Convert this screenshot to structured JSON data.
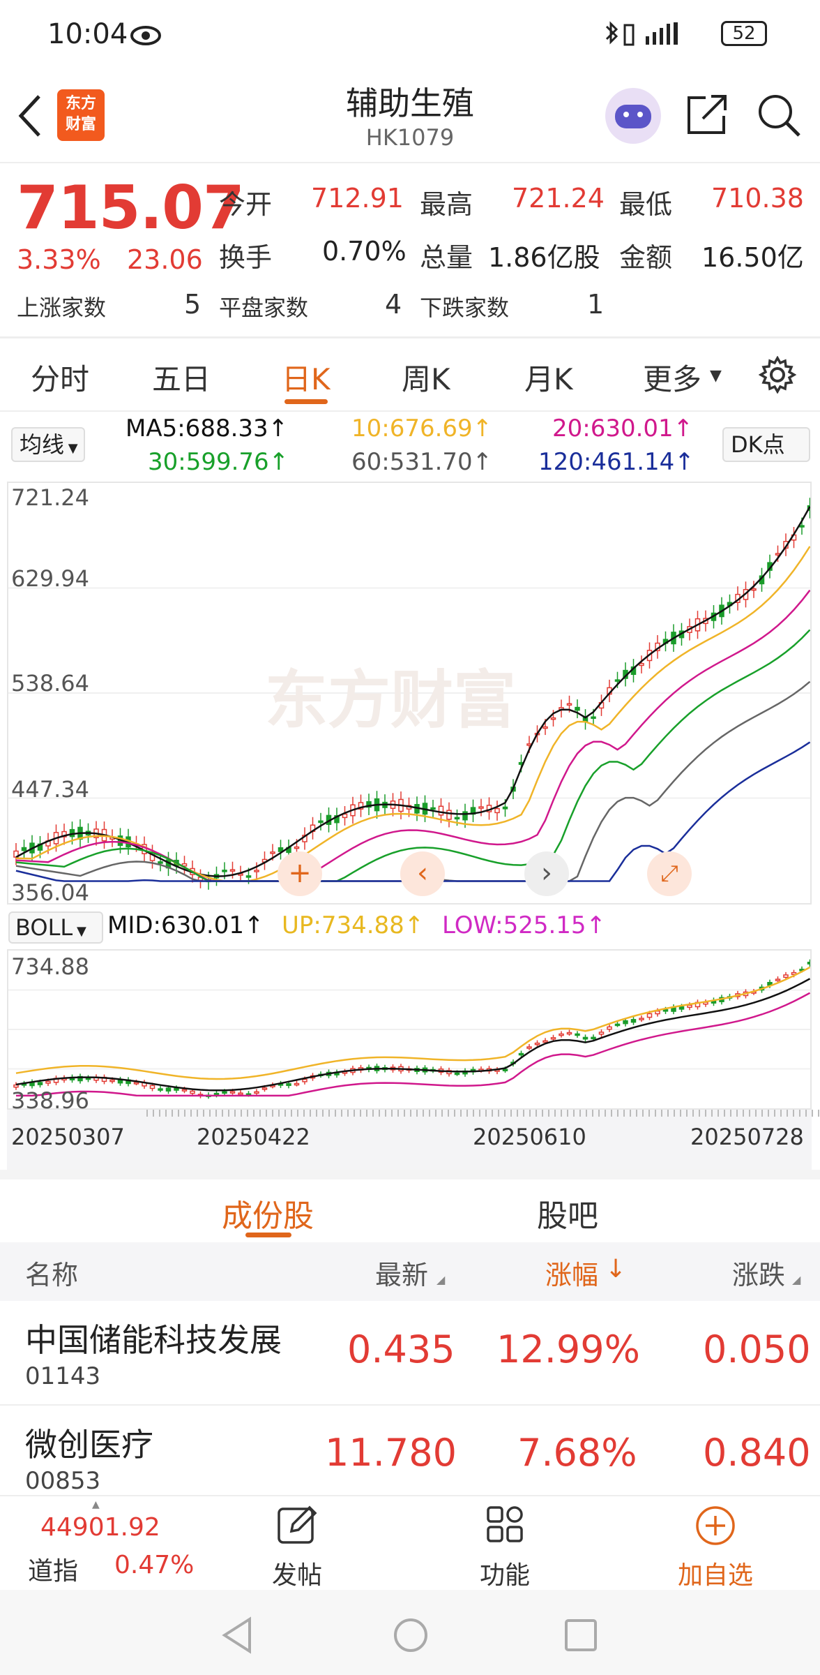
{
  "status": {
    "time": "10:04",
    "battery": "52"
  },
  "header": {
    "title": "辅助生殖",
    "code": "HK1079",
    "logo_line1": "东方",
    "logo_line2": "财富"
  },
  "quote": {
    "price": "715.07",
    "change_pct": "3.33%",
    "change": "23.06",
    "open_label": "今开",
    "open": "712.91",
    "high_label": "最高",
    "high": "721.24",
    "low_label": "最低",
    "low": "710.38",
    "turnover_label": "换手",
    "turnover": "0.70%",
    "volume_label": "总量",
    "volume": "1.86亿股",
    "amount_label": "金额",
    "amount": "16.50亿",
    "up_label": "上涨家数",
    "up_count": "5",
    "flat_label": "平盘家数",
    "flat_count": "4",
    "down_label": "下跌家数",
    "down_count": "1"
  },
  "period_tabs": [
    {
      "label": "分时"
    },
    {
      "label": "五日"
    },
    {
      "label": "日K"
    },
    {
      "label": "周K"
    },
    {
      "label": "月K"
    },
    {
      "label": "更多"
    }
  ],
  "ma": {
    "selector": "均线",
    "dk": "DK点",
    "ma5": "MA5:688.33↑",
    "ma10": "10:676.69↑",
    "ma20": "20:630.01↑",
    "ma30": "30:599.76↑",
    "ma60": "60:531.70↑",
    "ma120": "120:461.14↑"
  },
  "colors": {
    "ma5": "#111111",
    "ma10": "#f0b428",
    "ma20": "#d0188c",
    "ma30": "#18a02a",
    "ma60": "#666666",
    "ma120": "#1a2e9a",
    "up": "#e23b34",
    "down": "#1a9c2a",
    "accent": "#e0661b"
  },
  "main_chart": {
    "y_ticks": [
      "721.24",
      "629.94",
      "538.64",
      "447.34",
      "356.04"
    ],
    "watermark": "东方财富"
  },
  "boll": {
    "selector": "BOLL",
    "mid": "MID:630.01↑",
    "up": "UP:734.88↑",
    "low": "LOW:525.15↑",
    "y_top": "734.88",
    "y_bottom": "338.96"
  },
  "dates": [
    "20250307",
    "20250422",
    "20250610",
    "20250728"
  ],
  "lower_tabs": [
    {
      "label": "成份股"
    },
    {
      "label": "股吧"
    }
  ],
  "list_headers": {
    "name": "名称",
    "latest": "最新",
    "pct": "涨幅",
    "change": "涨跌"
  },
  "rows": [
    {
      "name": "中国储能科技发展",
      "code": "01143",
      "latest": "0.435",
      "pct": "12.99%",
      "change": "0.050"
    },
    {
      "name": "微创医疗",
      "code": "00853",
      "latest": "11.780",
      "pct": "7.68%",
      "change": "0.840"
    }
  ],
  "bottom": {
    "index_value": "44901.92",
    "index_name": "道指",
    "index_pct": "0.47%",
    "post": "发帖",
    "func": "功能",
    "add": "加自选"
  }
}
